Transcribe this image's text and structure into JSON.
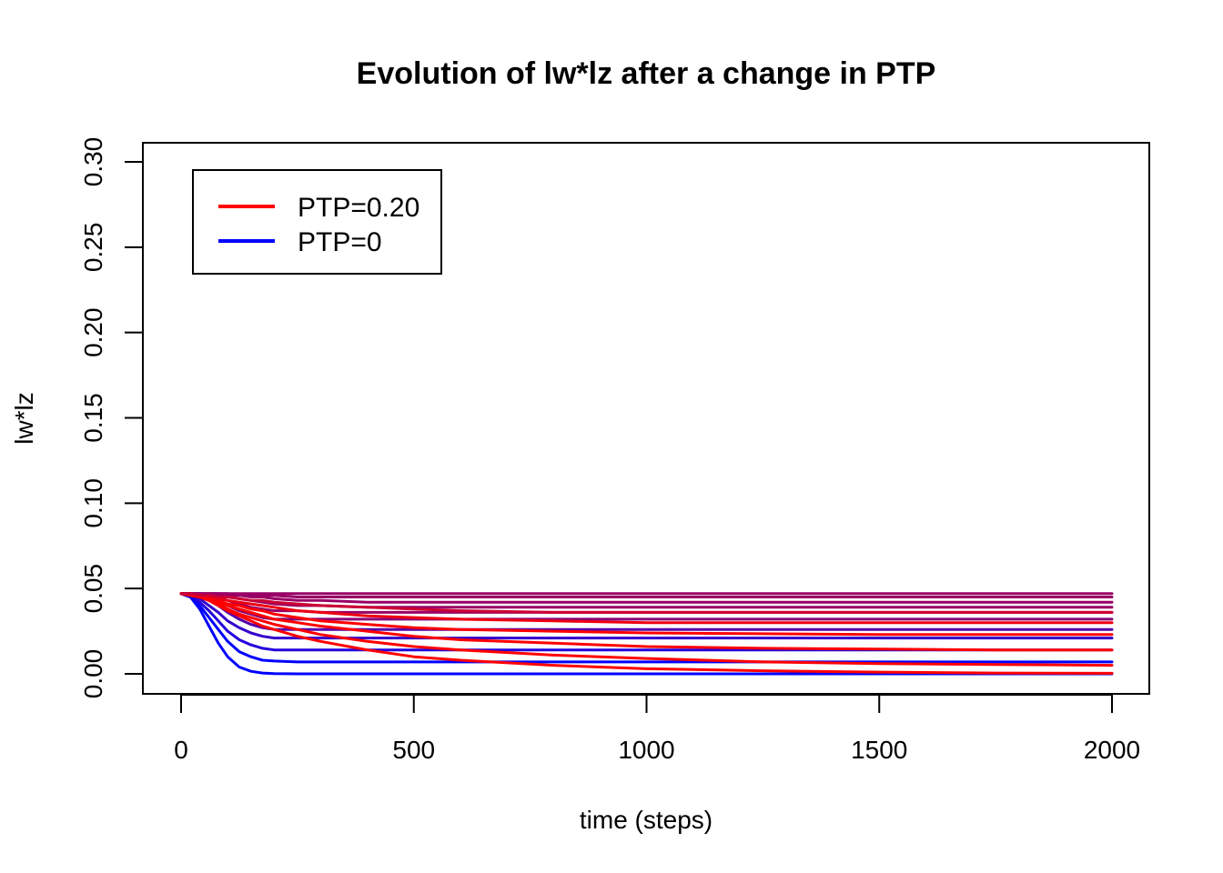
{
  "chart_data": {
    "type": "line",
    "title": "Evolution of lw*lz after a change in PTP",
    "xlabel": "time (steps)",
    "ylabel": "lw*lz",
    "xlim": [
      0,
      2000
    ],
    "ylim": [
      0,
      0.3
    ],
    "x_ticks": [
      0,
      500,
      1000,
      1500,
      2000
    ],
    "x_tick_labels": [
      "0",
      "500",
      "1000",
      "1500",
      "2000"
    ],
    "y_ticks": [
      0.0,
      0.05,
      0.1,
      0.15,
      0.2,
      0.25,
      0.3
    ],
    "y_tick_labels": [
      "0.00",
      "0.05",
      "0.10",
      "0.15",
      "0.20",
      "0.25",
      "0.30"
    ],
    "grid": false,
    "legend": {
      "position": "top-left",
      "entries": [
        {
          "label": "PTP=0.20",
          "color": "#ff0000"
        },
        {
          "label": "PTP=0"
        }
      ]
    },
    "legend_colors": [
      "#ff0000",
      "#0000ff"
    ],
    "x": [
      0,
      20,
      40,
      60,
      80,
      100,
      125,
      150,
      175,
      200,
      250,
      300,
      400,
      500,
      600,
      800,
      1000,
      1250,
      1500,
      1750,
      2000
    ],
    "series": [
      {
        "color": "#0000ff",
        "values": [
          0.047,
          0.045,
          0.038,
          0.028,
          0.018,
          0.01,
          0.004,
          0.0015,
          0.0005,
          0.0001,
          0.0,
          0.0,
          0.0,
          0.0,
          0.0,
          0.0,
          0.0,
          0.0,
          0.0,
          0.0,
          0.0
        ]
      },
      {
        "color": "#0000ff",
        "values": [
          0.047,
          0.045,
          0.04,
          0.033,
          0.026,
          0.019,
          0.013,
          0.01,
          0.008,
          0.0075,
          0.007,
          0.007,
          0.007,
          0.007,
          0.007,
          0.007,
          0.007,
          0.007,
          0.007,
          0.007,
          0.007
        ]
      },
      {
        "color": "#2200dd",
        "values": [
          0.047,
          0.046,
          0.042,
          0.037,
          0.031,
          0.025,
          0.02,
          0.017,
          0.015,
          0.014,
          0.014,
          0.014,
          0.014,
          0.014,
          0.014,
          0.014,
          0.014,
          0.014,
          0.014,
          0.014,
          0.014
        ]
      },
      {
        "color": "#3300cc",
        "values": [
          0.047,
          0.046,
          0.044,
          0.04,
          0.036,
          0.031,
          0.027,
          0.024,
          0.022,
          0.021,
          0.021,
          0.021,
          0.021,
          0.021,
          0.021,
          0.021,
          0.021,
          0.021,
          0.021,
          0.021,
          0.021
        ]
      },
      {
        "color": "#5500aa",
        "values": [
          0.047,
          0.046,
          0.045,
          0.043,
          0.04,
          0.036,
          0.032,
          0.029,
          0.027,
          0.026,
          0.026,
          0.026,
          0.026,
          0.026,
          0.026,
          0.026,
          0.026,
          0.026,
          0.026,
          0.026,
          0.026
        ]
      },
      {
        "color": "#880077",
        "values": [
          0.047,
          0.047,
          0.046,
          0.045,
          0.043,
          0.04,
          0.037,
          0.035,
          0.033,
          0.032,
          0.032,
          0.032,
          0.032,
          0.032,
          0.032,
          0.032,
          0.032,
          0.032,
          0.032,
          0.032,
          0.032
        ]
      },
      {
        "color": "#990066",
        "values": [
          0.047,
          0.047,
          0.046,
          0.046,
          0.045,
          0.043,
          0.041,
          0.039,
          0.038,
          0.037,
          0.037,
          0.036,
          0.036,
          0.036,
          0.036,
          0.036,
          0.036,
          0.036,
          0.036,
          0.036,
          0.036
        ]
      },
      {
        "color": "#990066",
        "values": [
          0.047,
          0.047,
          0.047,
          0.046,
          0.046,
          0.045,
          0.044,
          0.043,
          0.042,
          0.041,
          0.04,
          0.04,
          0.039,
          0.039,
          0.039,
          0.039,
          0.039,
          0.039,
          0.039,
          0.039,
          0.039
        ]
      },
      {
        "color": "#990066",
        "values": [
          0.047,
          0.047,
          0.047,
          0.047,
          0.047,
          0.046,
          0.046,
          0.045,
          0.045,
          0.044,
          0.043,
          0.043,
          0.042,
          0.042,
          0.042,
          0.042,
          0.042,
          0.042,
          0.042,
          0.042,
          0.042
        ]
      },
      {
        "color": "#990066",
        "values": [
          0.047,
          0.047,
          0.047,
          0.047,
          0.047,
          0.047,
          0.046,
          0.046,
          0.046,
          0.046,
          0.045,
          0.045,
          0.045,
          0.045,
          0.045,
          0.045,
          0.045,
          0.045,
          0.045,
          0.045,
          0.045
        ]
      },
      {
        "color": "#990066",
        "values": [
          0.047,
          0.047,
          0.047,
          0.047,
          0.047,
          0.047,
          0.047,
          0.047,
          0.047,
          0.047,
          0.047,
          0.047,
          0.047,
          0.047,
          0.047,
          0.047,
          0.047,
          0.047,
          0.047,
          0.047,
          0.047
        ]
      },
      {
        "color": "#ff0000",
        "values": [
          0.047,
          0.046,
          0.045,
          0.043,
          0.04,
          0.037,
          0.034,
          0.031,
          0.028,
          0.026,
          0.022,
          0.019,
          0.014,
          0.01,
          0.008,
          0.005,
          0.003,
          0.0018,
          0.001,
          0.0005,
          0.0003
        ]
      },
      {
        "color": "#ff0000",
        "values": [
          0.047,
          0.046,
          0.045,
          0.043,
          0.041,
          0.038,
          0.035,
          0.033,
          0.031,
          0.029,
          0.026,
          0.023,
          0.019,
          0.016,
          0.014,
          0.011,
          0.009,
          0.007,
          0.006,
          0.0055,
          0.005
        ]
      },
      {
        "color": "#ff0000",
        "values": [
          0.047,
          0.046,
          0.045,
          0.044,
          0.042,
          0.04,
          0.038,
          0.036,
          0.034,
          0.032,
          0.03,
          0.028,
          0.025,
          0.022,
          0.02,
          0.018,
          0.016,
          0.015,
          0.0145,
          0.014,
          0.014
        ]
      },
      {
        "color": "#ff0000",
        "values": [
          0.047,
          0.046,
          0.045,
          0.044,
          0.043,
          0.041,
          0.04,
          0.038,
          0.037,
          0.035,
          0.033,
          0.031,
          0.029,
          0.027,
          0.026,
          0.025,
          0.024,
          0.0235,
          0.023,
          0.023,
          0.023
        ]
      },
      {
        "color": "#ee0011",
        "values": [
          0.047,
          0.046,
          0.046,
          0.045,
          0.044,
          0.043,
          0.042,
          0.041,
          0.04,
          0.039,
          0.037,
          0.036,
          0.034,
          0.033,
          0.032,
          0.031,
          0.03,
          0.03,
          0.03,
          0.03,
          0.03
        ]
      },
      {
        "color": "#cc0033",
        "values": [
          0.047,
          0.047,
          0.046,
          0.046,
          0.045,
          0.045,
          0.044,
          0.043,
          0.043,
          0.042,
          0.041,
          0.04,
          0.039,
          0.038,
          0.037,
          0.036,
          0.036,
          0.036,
          0.036,
          0.036,
          0.036
        ]
      }
    ]
  }
}
